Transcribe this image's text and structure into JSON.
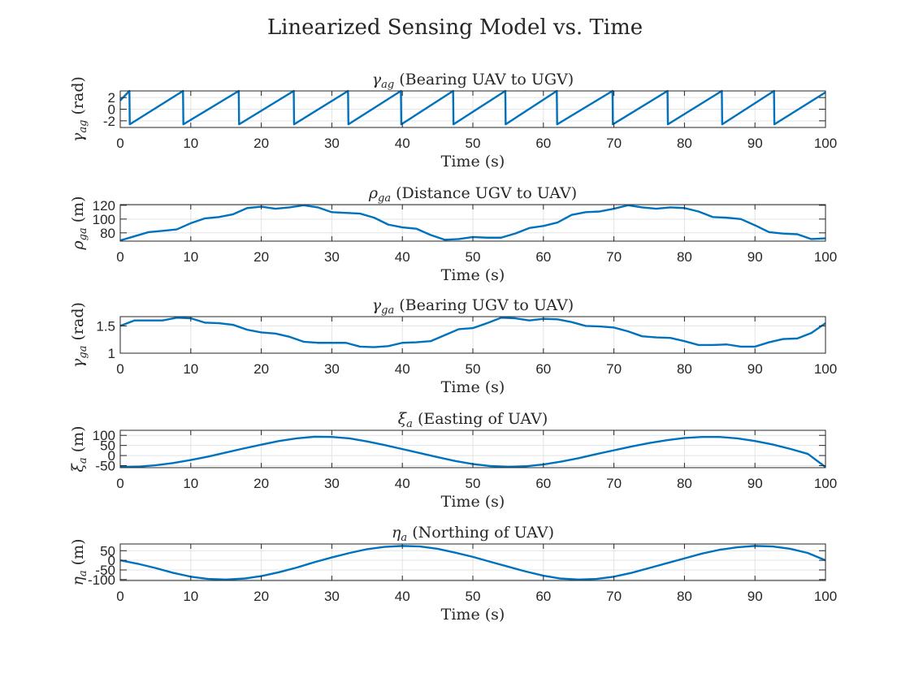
{
  "figure": {
    "title": "Linearized Sensing Model vs. Time"
  },
  "chart_data": [
    {
      "type": "line",
      "title_sym": "γ",
      "title_sub": "ag",
      "title_rest": " (Bearing UAV to UGV)",
      "ylabel_sym": "γ",
      "ylabel_sub": "ag",
      "ylabel_rest": " (rad)",
      "xlabel": "Time (s)",
      "xlim": [
        0,
        100
      ],
      "ylim": [
        -3.1416,
        3.1416
      ],
      "xticks": [
        0,
        10,
        20,
        30,
        40,
        50,
        60,
        70,
        80,
        90,
        100
      ],
      "yticks": [
        -2,
        0,
        2
      ],
      "yticklabels": [
        "-2",
        "0",
        "2"
      ],
      "grid": true,
      "color": "#0072BD",
      "series": [
        {
          "x": [
            0,
            1.3,
            1.35,
            8.9,
            8.95,
            16.8,
            16.85,
            24.6,
            24.65,
            32.3,
            32.35,
            39.8,
            39.85,
            47.2,
            47.25,
            54.6,
            54.65,
            61.9,
            61.95,
            69.8,
            69.85,
            77.6,
            77.65,
            85.3,
            85.35,
            92.7,
            92.75,
            100
          ],
          "y": [
            1.5,
            3.14,
            -2.6,
            3.14,
            -2.6,
            3.14,
            -2.6,
            3.14,
            -2.6,
            3.14,
            -2.6,
            3.14,
            -2.6,
            3.14,
            -2.6,
            3.14,
            -2.6,
            3.14,
            -2.6,
            3.14,
            -2.6,
            3.14,
            -2.6,
            3.14,
            -2.6,
            3.14,
            -2.6,
            2.9
          ]
        }
      ]
    },
    {
      "type": "line",
      "title_sym": "ρ",
      "title_sub": "ga",
      "title_rest": " (Distance UGV to UAV)",
      "ylabel_sym": "ρ",
      "ylabel_sub": "ga",
      "ylabel_rest": " (m)",
      "xlabel": "Time (s)",
      "xlim": [
        0,
        100
      ],
      "ylim": [
        68,
        121
      ],
      "xticks": [
        0,
        10,
        20,
        30,
        40,
        50,
        60,
        70,
        80,
        90,
        100
      ],
      "yticks": [
        80,
        100,
        120
      ],
      "yticklabels": [
        "80",
        "100",
        "120"
      ],
      "grid": true,
      "color": "#0072BD",
      "series": [
        {
          "x": [
            0,
            2,
            4,
            6,
            8,
            10,
            12,
            14,
            16,
            18,
            20,
            22,
            24,
            26,
            28,
            30,
            32,
            34,
            36,
            38,
            40,
            42,
            44,
            46,
            48,
            50,
            52,
            54,
            56,
            58,
            60,
            62,
            64,
            66,
            68,
            70,
            72,
            74,
            76,
            78,
            80,
            82,
            84,
            86,
            88,
            90,
            92,
            94,
            96,
            98,
            100
          ],
          "y": [
            69,
            75,
            81,
            83,
            85,
            94,
            101,
            103,
            107,
            116,
            118,
            115,
            117,
            120,
            117,
            110,
            109,
            108,
            102,
            92,
            88,
            86,
            77,
            70,
            71,
            74,
            73,
            73,
            79,
            87,
            90,
            95,
            106,
            110,
            111,
            115,
            120,
            117,
            115,
            117,
            116,
            111,
            103,
            102,
            100,
            91,
            81,
            79,
            78,
            71,
            72
          ]
        }
      ]
    },
    {
      "type": "line",
      "title_sym": "γ",
      "title_sub": "ga",
      "title_rest": " (Bearing UGV to UAV)",
      "ylabel_sym": "γ",
      "ylabel_sub": "ga",
      "ylabel_rest": " (rad)",
      "xlabel": "Time (s)",
      "xlim": [
        0,
        100
      ],
      "ylim": [
        1,
        1.67
      ],
      "xticks": [
        0,
        10,
        20,
        30,
        40,
        50,
        60,
        70,
        80,
        90,
        100
      ],
      "yticks": [
        1,
        1.5
      ],
      "yticklabels": [
        "1",
        "1.5"
      ],
      "grid": true,
      "color": "#0072BD",
      "series": [
        {
          "x": [
            0,
            2,
            4,
            6,
            8,
            10,
            12,
            14,
            16,
            18,
            20,
            22,
            24,
            26,
            28,
            30,
            32,
            34,
            36,
            38,
            40,
            42,
            44,
            46,
            48,
            50,
            52,
            54,
            56,
            58,
            60,
            62,
            64,
            66,
            68,
            70,
            72,
            74,
            76,
            78,
            80,
            82,
            84,
            86,
            88,
            90,
            92,
            94,
            96,
            98,
            100
          ],
          "y": [
            1.5,
            1.6,
            1.6,
            1.6,
            1.65,
            1.64,
            1.56,
            1.55,
            1.52,
            1.43,
            1.38,
            1.36,
            1.3,
            1.21,
            1.19,
            1.19,
            1.19,
            1.12,
            1.11,
            1.13,
            1.19,
            1.2,
            1.22,
            1.33,
            1.44,
            1.46,
            1.55,
            1.65,
            1.64,
            1.6,
            1.63,
            1.62,
            1.57,
            1.5,
            1.49,
            1.47,
            1.4,
            1.31,
            1.29,
            1.28,
            1.22,
            1.15,
            1.15,
            1.16,
            1.12,
            1.12,
            1.2,
            1.26,
            1.27,
            1.37,
            1.55
          ]
        }
      ]
    },
    {
      "type": "line",
      "title_sym": "ξ",
      "title_sub": "a",
      "title_rest": " (Easting of UAV)",
      "ylabel_sym": "ξ",
      "ylabel_sub": "a",
      "ylabel_rest": " (m)",
      "xlabel": "Time (s)",
      "xlim": [
        0,
        100
      ],
      "ylim": [
        -60,
        125
      ],
      "xticks": [
        0,
        10,
        20,
        30,
        40,
        50,
        60,
        70,
        80,
        90,
        100
      ],
      "yticks": [
        -50,
        0,
        50,
        100
      ],
      "yticklabels": [
        "-50",
        "0",
        "50",
        "100"
      ],
      "grid": true,
      "color": "#0072BD",
      "series": [
        {
          "x": [
            0,
            2.5,
            5,
            7.5,
            10,
            12.5,
            15,
            17.5,
            20,
            22.5,
            25,
            27.5,
            30,
            32.5,
            35,
            37.5,
            40,
            42.5,
            45,
            47.5,
            50,
            52.5,
            55,
            57.5,
            60,
            62.5,
            65,
            67.5,
            70,
            72.5,
            75,
            77.5,
            80,
            82.5,
            85,
            87.5,
            90,
            92.5,
            95,
            97.5,
            100
          ],
          "y": [
            -57,
            -55,
            -48,
            -37,
            -22,
            -5,
            15,
            35,
            54,
            72,
            85,
            93,
            92,
            85,
            70,
            52,
            32,
            12,
            -8,
            -27,
            -42,
            -52,
            -56,
            -53,
            -44,
            -30,
            -13,
            7,
            26,
            45,
            62,
            76,
            87,
            92,
            92,
            85,
            72,
            55,
            33,
            8,
            -57
          ]
        }
      ]
    },
    {
      "type": "line",
      "title_sym": "η",
      "title_sub": "a",
      "title_rest": " (Northing of UAV)",
      "ylabel_sym": "η",
      "ylabel_sub": "a",
      "ylabel_rest": " (m)",
      "xlabel": "Time (s)",
      "xlim": [
        0,
        100
      ],
      "ylim": [
        -105,
        85
      ],
      "xticks": [
        0,
        10,
        20,
        30,
        40,
        50,
        60,
        70,
        80,
        90,
        100
      ],
      "yticks": [
        -100,
        -50,
        0,
        50
      ],
      "yticklabels": [
        "-100",
        "-50",
        "0",
        "50"
      ],
      "grid": true,
      "color": "#0072BD",
      "series": [
        {
          "x": [
            0,
            2.5,
            5,
            7.5,
            10,
            12.5,
            15,
            17.5,
            20,
            22.5,
            25,
            27.5,
            30,
            32.5,
            35,
            37.5,
            40,
            42.5,
            45,
            47.5,
            50,
            52.5,
            55,
            57.5,
            60,
            62.5,
            65,
            67.5,
            70,
            72.5,
            75,
            77.5,
            80,
            82.5,
            85,
            87.5,
            90,
            92.5,
            95,
            97.5,
            100
          ],
          "y": [
            0,
            -18,
            -40,
            -65,
            -85,
            -97,
            -100,
            -95,
            -82,
            -62,
            -38,
            -10,
            15,
            38,
            58,
            70,
            75,
            72,
            60,
            40,
            18,
            -8,
            -33,
            -58,
            -80,
            -95,
            -100,
            -97,
            -85,
            -65,
            -40,
            -15,
            10,
            35,
            55,
            68,
            75,
            72,
            60,
            38,
            0
          ]
        }
      ]
    }
  ]
}
